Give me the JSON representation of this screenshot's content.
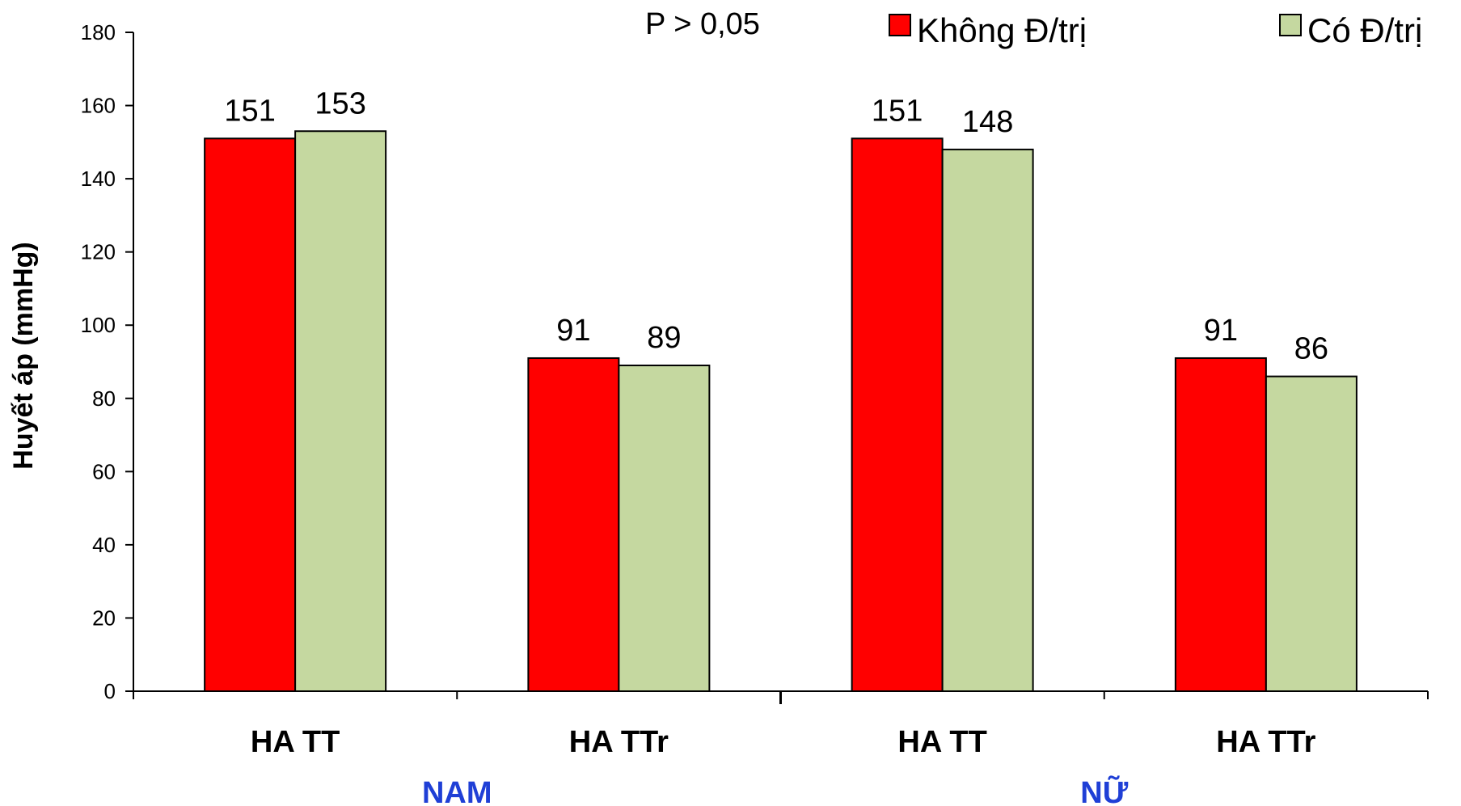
{
  "chart_data": {
    "type": "bar",
    "ylabel": "Huyết áp (mmHg)",
    "ylim": [
      0,
      180
    ],
    "yticks": [
      0,
      20,
      40,
      60,
      80,
      100,
      120,
      140,
      160,
      180
    ],
    "grid": false,
    "legend_position": "top-right",
    "annotation": "P > 0,05",
    "categories": [
      "HA TT",
      "HA TTr",
      "HA TT",
      "HA TTr"
    ],
    "groups": [
      {
        "label": "NAM",
        "categories": [
          0,
          1
        ]
      },
      {
        "label": "NỮ",
        "categories": [
          2,
          3
        ]
      }
    ],
    "series": [
      {
        "name": "Không Đ/trị",
        "color": "#ff0000",
        "values": [
          151,
          91,
          151,
          91
        ]
      },
      {
        "name": "Có Đ/trị",
        "color": "#c5d8a0",
        "values": [
          153,
          89,
          148,
          86
        ]
      }
    ]
  }
}
